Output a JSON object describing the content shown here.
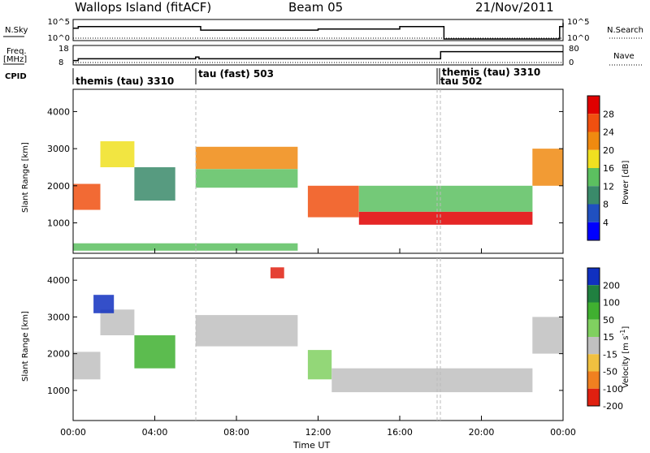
{
  "header": {
    "station": "Wallops Island (fitACF)",
    "beam": "Beam 05",
    "date": "21/Nov/2011"
  },
  "status_panels": {
    "nsky": {
      "label": "N.Sky",
      "ticks": [
        "10^5",
        "10^0"
      ]
    },
    "nsearch": {
      "label": "N.Search",
      "ticks": [
        "10^5",
        "10^0"
      ]
    },
    "freq": {
      "label_top": "Freq.",
      "label_bottom": "[MHz]",
      "ticks": [
        "18",
        "8"
      ]
    },
    "nave": {
      "label": "Nave",
      "ticks": [
        "80",
        "0"
      ]
    },
    "cpid": {
      "label": "CPID"
    }
  },
  "cpid_segments": [
    {
      "label": "themis (tau) 3310",
      "start": "00:00"
    },
    {
      "label": "tau (fast) 503",
      "start": "06:00"
    },
    {
      "label": "tau 502",
      "start": "18:00"
    },
    {
      "label": "themis (tau) 3310",
      "start": "18:10"
    }
  ],
  "x_axis": {
    "label": "Time UT",
    "ticks": [
      "00:00",
      "04:00",
      "08:00",
      "12:00",
      "16:00",
      "20:00",
      "00:00"
    ]
  },
  "colorbars": {
    "power": {
      "title": "Power [dB]",
      "ticks": [
        "28",
        "24",
        "20",
        "16",
        "12",
        "8",
        "4"
      ]
    },
    "velocity": {
      "title_main": "Velocity [m s",
      "title_sup": "-1",
      "title_end": "]",
      "ticks": [
        "200",
        "100",
        "50",
        "15",
        "-15",
        "-50",
        "-100",
        "-200"
      ]
    }
  },
  "chart_data": [
    {
      "type": "line",
      "name": "N.Sky",
      "x": [
        "00:00",
        "00:15",
        "06:00",
        "06:15",
        "12:00",
        "16:00",
        "18:00",
        "18:10",
        "23:50",
        "24:00"
      ],
      "y": [
        1000,
        3000,
        3000,
        300,
        600,
        3000,
        3000,
        1,
        3000,
        30000
      ]
    },
    {
      "type": "line",
      "name": "Freq.",
      "x": [
        "00:00",
        "00:15",
        "05:10",
        "06:00",
        "06:10",
        "12:00",
        "18:00",
        "18:10",
        "24:00"
      ],
      "y": [
        10,
        11,
        11,
        12,
        11,
        11,
        15,
        15,
        15
      ]
    },
    {
      "type": "heatmap",
      "ylabel": "Slant Range [km]",
      "xlabel": "Time UT",
      "y_ticks": [
        1000,
        2000,
        3000,
        4000
      ],
      "ylim": [
        180,
        4600
      ],
      "colorbar": "Power [dB]",
      "scale": [
        0,
        30
      ],
      "regions": [
        {
          "from": "00:00",
          "to": "01:20",
          "range_km": [
            1350,
            2050
          ],
          "value": 26
        },
        {
          "from": "01:20",
          "to": "03:00",
          "range_km": [
            2500,
            3200
          ],
          "value": 18
        },
        {
          "from": "03:00",
          "to": "05:00",
          "range_km": [
            1600,
            2500
          ],
          "value": 10
        },
        {
          "from": "06:00",
          "to": "11:00",
          "range_km": [
            2450,
            3050
          ],
          "value": 22
        },
        {
          "from": "06:00",
          "to": "11:00",
          "range_km": [
            1950,
            2450
          ],
          "value": 14
        },
        {
          "from": "11:30",
          "to": "14:00",
          "range_km": [
            1150,
            2000
          ],
          "value": 24
        },
        {
          "from": "14:00",
          "to": "22:30",
          "range_km": [
            950,
            1300
          ],
          "value": 28
        },
        {
          "from": "14:00",
          "to": "22:30",
          "range_km": [
            1300,
            2000
          ],
          "value": 12
        },
        {
          "from": "22:30",
          "to": "24:00",
          "range_km": [
            2000,
            3000
          ],
          "value": 22
        },
        {
          "from": "00:00",
          "to": "11:00",
          "range_km": [
            250,
            450
          ],
          "value": 12
        }
      ]
    },
    {
      "type": "heatmap",
      "ylabel": "Slant Range [km]",
      "xlabel": "Time UT",
      "y_ticks": [
        1000,
        2000,
        3000,
        4000
      ],
      "ylim": [
        180,
        4600
      ],
      "colorbar": "Velocity [m s-1]",
      "scale": [
        -200,
        200
      ],
      "regions": [
        {
          "from": "00:00",
          "to": "01:20",
          "range_km": [
            1300,
            2050
          ],
          "value": 0
        },
        {
          "from": "01:20",
          "to": "03:00",
          "range_km": [
            2500,
            3200
          ],
          "value": 0
        },
        {
          "from": "01:00",
          "to": "02:00",
          "range_km": [
            3100,
            3600
          ],
          "value": 200
        },
        {
          "from": "03:00",
          "to": "05:00",
          "range_km": [
            1600,
            2500
          ],
          "value": 50
        },
        {
          "from": "06:00",
          "to": "11:00",
          "range_km": [
            2200,
            3050
          ],
          "value": 0
        },
        {
          "from": "09:40",
          "to": "10:20",
          "range_km": [
            4050,
            4350
          ],
          "value": -200
        },
        {
          "from": "11:30",
          "to": "12:40",
          "range_km": [
            1300,
            2100
          ],
          "value": 30
        },
        {
          "from": "12:40",
          "to": "22:30",
          "range_km": [
            950,
            1600
          ],
          "value": 0
        },
        {
          "from": "22:30",
          "to": "24:00",
          "range_km": [
            2000,
            3000
          ],
          "value": 0
        }
      ]
    }
  ]
}
